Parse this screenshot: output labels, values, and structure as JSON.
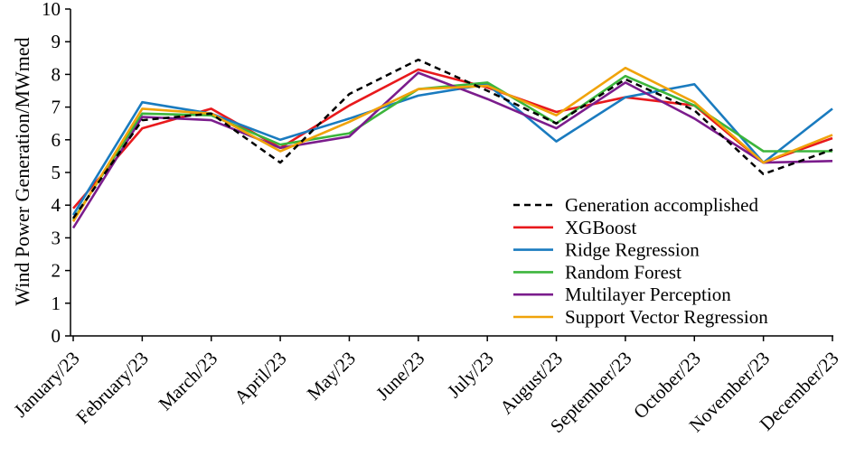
{
  "chart_data": {
    "type": "line",
    "title": "",
    "xlabel": "",
    "ylabel": "Wind Power Generation/MWmed",
    "ylim": [
      0,
      10
    ],
    "yticks": [
      0,
      1,
      2,
      3,
      4,
      5,
      6,
      7,
      8,
      9,
      10
    ],
    "grid": false,
    "legend_position": "bottom-right",
    "categories": [
      "January/23",
      "February/23",
      "March/23",
      "April/23",
      "May/23",
      "June/23",
      "July/23",
      "August/23",
      "September/23",
      "October/23",
      "November/23",
      "December/23"
    ],
    "series": [
      {
        "name": "Generation accomplished",
        "color": "#000000",
        "dashed": true,
        "values": [
          3.6,
          6.6,
          6.8,
          5.3,
          7.4,
          8.45,
          7.5,
          6.5,
          7.85,
          6.9,
          4.95,
          5.7
        ]
      },
      {
        "name": "XGBoost",
        "color": "#e8191c",
        "dashed": false,
        "values": [
          3.9,
          6.35,
          6.95,
          5.75,
          7.05,
          8.15,
          7.6,
          6.85,
          7.3,
          7.05,
          5.3,
          6.05
        ]
      },
      {
        "name": "Ridge Regression",
        "color": "#1a7bbf",
        "dashed": false,
        "values": [
          3.7,
          7.15,
          6.8,
          6.0,
          6.65,
          7.35,
          7.7,
          5.95,
          7.3,
          7.7,
          5.3,
          6.95
        ]
      },
      {
        "name": "Random Forest",
        "color": "#3cb53c",
        "dashed": false,
        "values": [
          3.55,
          6.8,
          6.75,
          5.85,
          6.2,
          7.55,
          7.75,
          6.5,
          7.95,
          7.05,
          5.65,
          5.65
        ]
      },
      {
        "name": "Multilayer Perception",
        "color": "#7b1c8c",
        "dashed": false,
        "values": [
          3.3,
          6.7,
          6.6,
          5.75,
          6.1,
          8.05,
          7.25,
          6.35,
          7.75,
          6.65,
          5.3,
          5.35
        ]
      },
      {
        "name": "Support Vector Regression",
        "color": "#f0a30a",
        "dashed": false,
        "values": [
          3.5,
          6.95,
          6.8,
          5.65,
          6.55,
          7.55,
          7.65,
          6.75,
          8.2,
          7.15,
          5.3,
          6.15
        ]
      }
    ]
  }
}
